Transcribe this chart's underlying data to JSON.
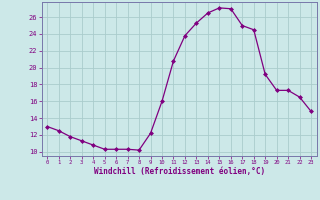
{
  "x": [
    0,
    1,
    2,
    3,
    4,
    5,
    6,
    7,
    8,
    9,
    10,
    11,
    12,
    13,
    14,
    15,
    16,
    17,
    18,
    19,
    20,
    21,
    22,
    23
  ],
  "y": [
    13.0,
    12.5,
    11.8,
    11.3,
    10.8,
    10.3,
    10.3,
    10.3,
    10.2,
    12.2,
    16.0,
    20.8,
    23.8,
    25.3,
    26.5,
    27.1,
    27.0,
    25.0,
    24.5,
    19.2,
    17.3,
    17.3,
    16.5,
    14.8
  ],
  "line_color": "#800080",
  "marker": "D",
  "marker_size": 2,
  "bg_color": "#cce8e8",
  "grid_color": "#aacccc",
  "xlabel": "Windchill (Refroidissement éolien,°C)",
  "xlim": [
    -0.5,
    23.5
  ],
  "ylim": [
    9.5,
    27.8
  ],
  "xticks": [
    0,
    1,
    2,
    3,
    4,
    5,
    6,
    7,
    8,
    9,
    10,
    11,
    12,
    13,
    14,
    15,
    16,
    17,
    18,
    19,
    20,
    21,
    22,
    23
  ],
  "yticks": [
    10,
    12,
    14,
    16,
    18,
    20,
    22,
    24,
    26
  ],
  "label_color": "#800080",
  "spine_color": "#7777aa"
}
